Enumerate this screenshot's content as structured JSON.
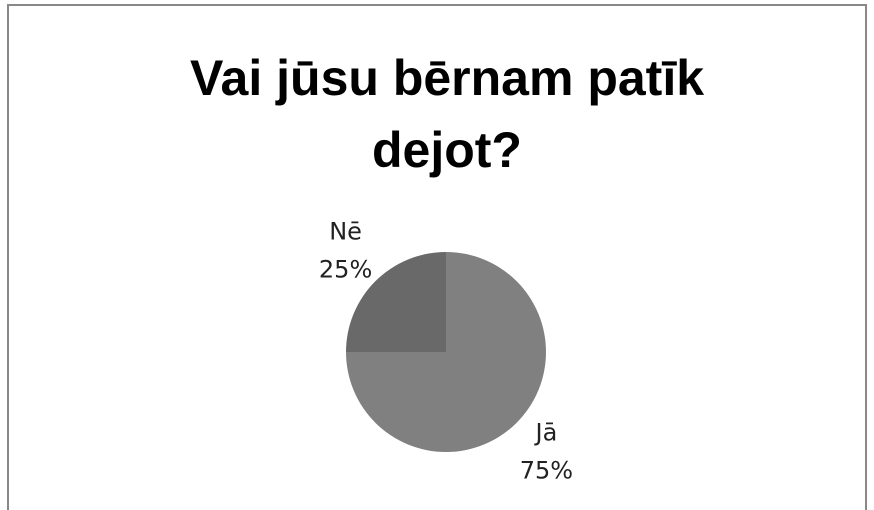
{
  "chart_data": {
    "type": "pie",
    "title": "Vai jūsu bērnam patīk dejot?",
    "categories": [
      "Jā",
      "Nē"
    ],
    "values": [
      75,
      25
    ],
    "value_labels": [
      "75%",
      "25%"
    ],
    "colors": [
      "#808080",
      "#696969"
    ]
  }
}
